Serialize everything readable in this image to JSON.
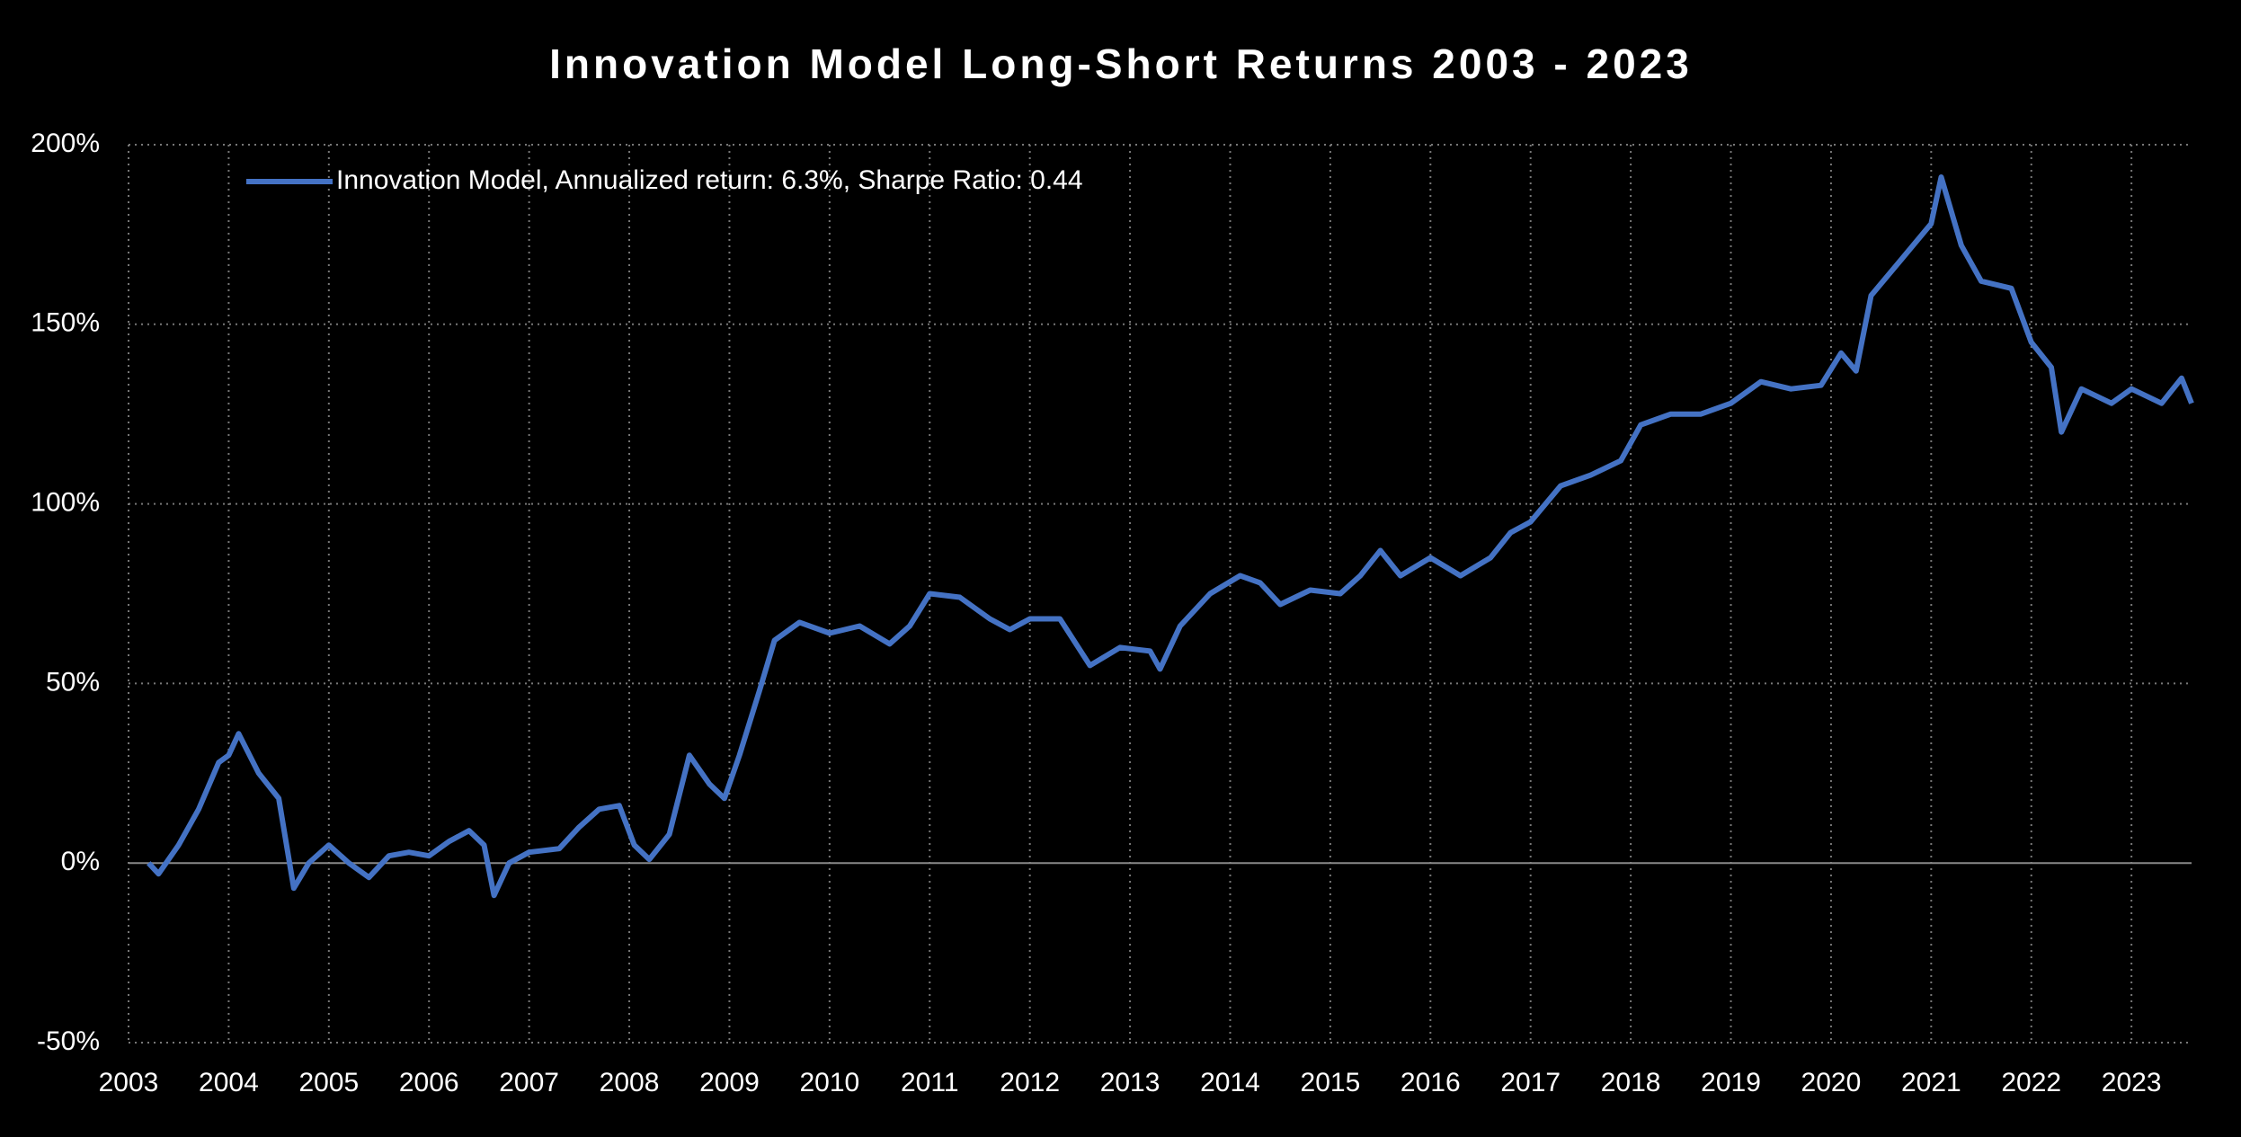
{
  "chart_data": {
    "type": "line",
    "title": "Innovation Model Long-Short Returns 2003 - 2023",
    "x": [
      2003.2,
      2003.3,
      2003.5,
      2003.7,
      2003.9,
      2004.0,
      2004.1,
      2004.3,
      2004.5,
      2004.65,
      2004.8,
      2005.0,
      2005.2,
      2005.4,
      2005.6,
      2005.8,
      2006.0,
      2006.2,
      2006.4,
      2006.55,
      2006.65,
      2006.8,
      2007.0,
      2007.3,
      2007.5,
      2007.7,
      2007.9,
      2008.05,
      2008.2,
      2008.4,
      2008.6,
      2008.8,
      2008.95,
      2009.1,
      2009.3,
      2009.45,
      2009.7,
      2010.0,
      2010.3,
      2010.6,
      2010.8,
      2011.0,
      2011.3,
      2011.6,
      2011.8,
      2012.0,
      2012.3,
      2012.6,
      2012.9,
      2013.2,
      2013.3,
      2013.5,
      2013.8,
      2014.1,
      2014.3,
      2014.5,
      2014.8,
      2015.1,
      2015.3,
      2015.5,
      2015.7,
      2016.0,
      2016.3,
      2016.6,
      2016.8,
      2017.0,
      2017.3,
      2017.6,
      2017.9,
      2018.1,
      2018.4,
      2018.7,
      2019.0,
      2019.3,
      2019.6,
      2019.9,
      2020.1,
      2020.25,
      2020.4,
      2020.7,
      2021.0,
      2021.1,
      2021.3,
      2021.5,
      2021.8,
      2022.0,
      2022.2,
      2022.3,
      2022.5,
      2022.8,
      2023.0,
      2023.3,
      2023.5,
      2023.6
    ],
    "series": [
      {
        "name": "Innovation Model, Annualized return: 6.3%, Sharpe Ratio: 0.44",
        "color": "#4472c4",
        "values": [
          0,
          -3,
          5,
          15,
          28,
          30,
          36,
          25,
          18,
          -7,
          0,
          5,
          0,
          -4,
          2,
          3,
          2,
          6,
          9,
          5,
          -9,
          0,
          3,
          4,
          10,
          15,
          16,
          5,
          1,
          8,
          30,
          22,
          18,
          30,
          48,
          62,
          67,
          64,
          66,
          61,
          66,
          75,
          74,
          68,
          65,
          68,
          68,
          55,
          60,
          59,
          54,
          66,
          75,
          80,
          78,
          72,
          76,
          75,
          80,
          87,
          80,
          85,
          80,
          85,
          92,
          95,
          105,
          108,
          112,
          122,
          125,
          125,
          128,
          134,
          132,
          133,
          142,
          137,
          158,
          168,
          178,
          191,
          172,
          162,
          160,
          145,
          138,
          120,
          132,
          128,
          132,
          128,
          135,
          128
        ]
      }
    ],
    "xlim": [
      2003,
      2023.6
    ],
    "xticks": [
      2003,
      2004,
      2005,
      2006,
      2007,
      2008,
      2009,
      2010,
      2011,
      2012,
      2013,
      2014,
      2015,
      2016,
      2017,
      2018,
      2019,
      2020,
      2021,
      2022,
      2023
    ],
    "ylim": [
      -50,
      200
    ],
    "yticks": [
      {
        "value": -50,
        "label": "-50%"
      },
      {
        "value": 0,
        "label": "0%"
      },
      {
        "value": 50,
        "label": "50%"
      },
      {
        "value": 100,
        "label": "100%"
      },
      {
        "value": 150,
        "label": "150%"
      },
      {
        "value": 200,
        "label": "200%"
      }
    ],
    "grid": true,
    "legend": "upper left"
  }
}
